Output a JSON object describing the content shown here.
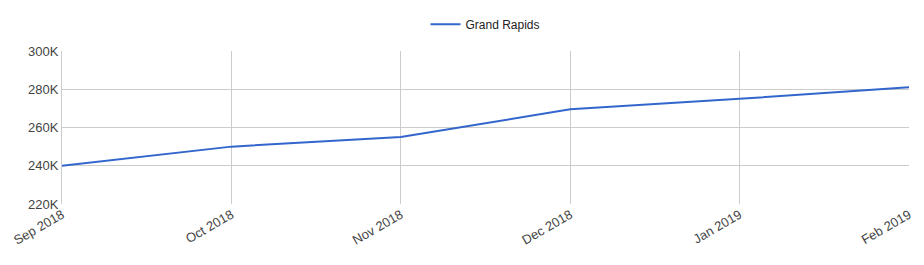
{
  "chart_data": {
    "type": "line",
    "categories": [
      "Sep 2018",
      "Oct 2018",
      "Nov 2018",
      "Dec 2018",
      "Jan 2019",
      "Feb 2019"
    ],
    "series": [
      {
        "name": "Grand Rapids",
        "color": "#3366cc",
        "values": [
          240000,
          250000,
          255000,
          269500,
          275000,
          281000
        ]
      }
    ],
    "ylim": [
      220000,
      300000
    ],
    "yticks": [
      {
        "value": 220000,
        "label": "220K"
      },
      {
        "value": 240000,
        "label": "240K"
      },
      {
        "value": 260000,
        "label": "260K"
      },
      {
        "value": 280000,
        "label": "280K"
      },
      {
        "value": 300000,
        "label": "300K"
      }
    ],
    "grid": true,
    "legend": "top"
  }
}
